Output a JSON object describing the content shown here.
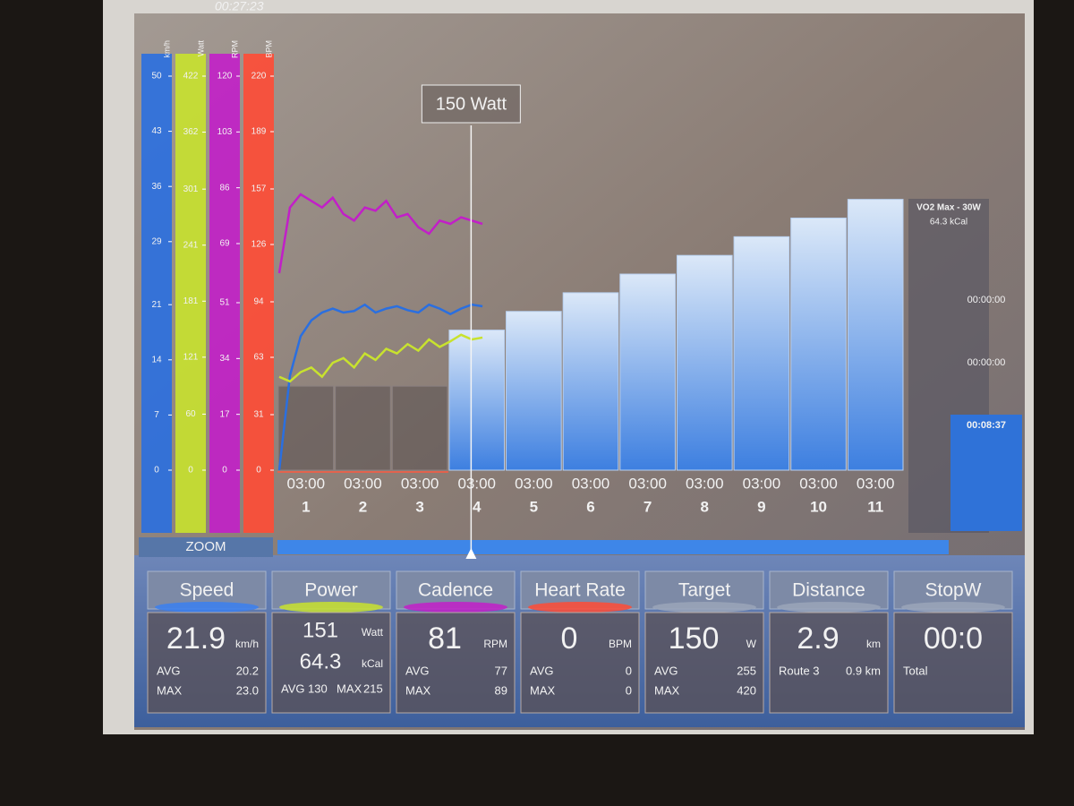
{
  "header": {
    "clock": "00:27:23"
  },
  "axes": [
    {
      "unit": "km/h",
      "color": "#2a6fe0",
      "ticks": [
        0,
        7,
        14,
        21,
        29,
        36,
        43,
        50
      ],
      "trace": [
        0,
        12,
        17,
        19,
        20,
        20.5,
        20,
        20.2,
        21,
        20,
        20.5,
        20.8,
        20.3,
        20,
        21,
        20.5,
        19.8,
        20.5,
        21,
        20.8
      ]
    },
    {
      "unit": "Watt",
      "color": "#c8e22e",
      "ticks": [
        0,
        60,
        121,
        181,
        241,
        301,
        362,
        422
      ],
      "trace": [
        100,
        95,
        105,
        110,
        100,
        115,
        120,
        110,
        125,
        118,
        130,
        125,
        135,
        128,
        140,
        132,
        138,
        145,
        140,
        142
      ]
    },
    {
      "unit": "RPM",
      "color": "#c21fc8",
      "ticks": [
        0,
        17,
        34,
        51,
        69,
        86,
        103,
        120
      ],
      "trace": [
        60,
        80,
        84,
        82,
        80,
        83,
        78,
        76,
        80,
        79,
        82,
        77,
        78,
        74,
        72,
        76,
        75,
        77,
        76,
        75
      ]
    },
    {
      "unit": "BPM",
      "color": "#ff4b35",
      "ticks": [
        0,
        31,
        63,
        94,
        126,
        157,
        189,
        220
      ]
    }
  ],
  "marker": {
    "label": "150 Watt"
  },
  "workout": {
    "intervals": [
      {
        "label": "1",
        "duration": "03:00",
        "watts": 90
      },
      {
        "label": "2",
        "duration": "03:00",
        "watts": 90
      },
      {
        "label": "3",
        "duration": "03:00",
        "watts": 90
      },
      {
        "label": "4",
        "duration": "03:00",
        "watts": 150
      },
      {
        "label": "5",
        "duration": "03:00",
        "watts": 170
      },
      {
        "label": "6",
        "duration": "03:00",
        "watts": 190
      },
      {
        "label": "7",
        "duration": "03:00",
        "watts": 210
      },
      {
        "label": "8",
        "duration": "03:00",
        "watts": 230
      },
      {
        "label": "9",
        "duration": "03:00",
        "watts": 250
      },
      {
        "label": "10",
        "duration": "03:00",
        "watts": 270
      },
      {
        "label": "11",
        "duration": "03:00",
        "watts": 290
      }
    ]
  },
  "side": {
    "title": "VO2 Max - 30W",
    "kcal": "64.3 kCal",
    "timers": [
      "00:00:00",
      "00:00:00",
      "00:08:37"
    ]
  },
  "zoom": "ZOOM",
  "stats": [
    {
      "title": "Speed",
      "accent": "#3a7ff0",
      "main": "21.9",
      "unit": "km/h",
      "rows": [
        [
          "AVG",
          "20.2"
        ],
        [
          "MAX",
          "23.0"
        ]
      ]
    },
    {
      "title": "Power",
      "accent": "#c8e22e",
      "main": "151",
      "unit": "Watt",
      "sub": "64.3",
      "sub_unit": "kCal",
      "rows": [
        [
          "AVG",
          "130"
        ],
        [
          "MAX",
          "215"
        ]
      ]
    },
    {
      "title": "Cadence",
      "accent": "#c21fc8",
      "main": "81",
      "unit": "RPM",
      "rows": [
        [
          "AVG",
          "77"
        ],
        [
          "MAX",
          "89"
        ]
      ]
    },
    {
      "title": "Heart Rate",
      "accent": "#ff4b35",
      "main": "0",
      "unit": "BPM",
      "rows": [
        [
          "AVG",
          "0"
        ],
        [
          "MAX",
          "0"
        ]
      ]
    },
    {
      "title": "Target",
      "accent": "#9aa4b8",
      "main": "150",
      "unit": "W",
      "rows": [
        [
          "AVG",
          "255"
        ],
        [
          "MAX",
          "420"
        ]
      ]
    },
    {
      "title": "Distance",
      "accent": "#9aa4b8",
      "main": "2.9",
      "unit": "km",
      "rows": [
        [
          "Route 3",
          "0.9 km"
        ]
      ]
    },
    {
      "title": "StopW",
      "accent": "#9aa4b8",
      "main": "00:0",
      "rows": [
        [
          "Total"
        ]
      ]
    }
  ]
}
